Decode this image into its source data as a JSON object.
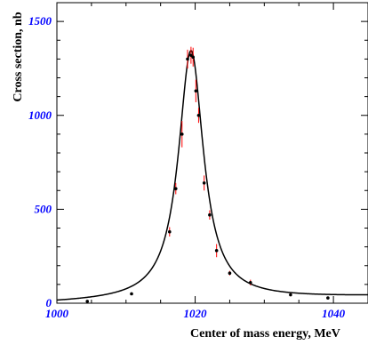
{
  "chart_data": {
    "type": "scatter",
    "xlabel": "Center of mass energy, MeV",
    "ylabel": "Cross section, nb",
    "xlim": [
      1000,
      1045
    ],
    "ylim": [
      0,
      1600
    ],
    "x_ticks": [
      1000,
      1020,
      1040
    ],
    "y_ticks": [
      0,
      500,
      1000,
      1500
    ],
    "x_tick_labels": [
      "1000",
      "1020",
      "1040"
    ],
    "y_tick_labels": [
      "0",
      "500",
      "1000",
      "1500"
    ],
    "tick_label_color": "#0000ff",
    "grid": false,
    "legend": "none",
    "series": [
      {
        "kind": "points",
        "color": "#000000",
        "error_color": "#ff0000",
        "points": [
          {
            "x": 1004.4,
            "y": 10,
            "err": 4
          },
          {
            "x": 1010.8,
            "y": 50,
            "err": 6
          },
          {
            "x": 1016.3,
            "y": 380,
            "err": 25
          },
          {
            "x": 1017.2,
            "y": 610,
            "err": 30
          },
          {
            "x": 1018.1,
            "y": 900,
            "err": 70
          },
          {
            "x": 1018.9,
            "y": 1300,
            "err": 50
          },
          {
            "x": 1019.4,
            "y": 1320,
            "err": 45
          },
          {
            "x": 1019.7,
            "y": 1310,
            "err": 50
          },
          {
            "x": 1020.1,
            "y": 1130,
            "err": 60
          },
          {
            "x": 1020.5,
            "y": 1000,
            "err": 40
          },
          {
            "x": 1021.3,
            "y": 640,
            "err": 40
          },
          {
            "x": 1022.1,
            "y": 470,
            "err": 25
          },
          {
            "x": 1023.1,
            "y": 280,
            "err": 35
          },
          {
            "x": 1025.0,
            "y": 160,
            "err": 12
          },
          {
            "x": 1028.0,
            "y": 110,
            "err": 15
          },
          {
            "x": 1033.8,
            "y": 45,
            "err": 8
          },
          {
            "x": 1039.2,
            "y": 28,
            "err": 6
          }
        ]
      },
      {
        "kind": "fit-curve",
        "color": "#000000",
        "model": {
          "peak_x": 1019.4,
          "peak_y": 1330,
          "half_width": 2.2,
          "background_left": 0,
          "background_right": 35
        }
      }
    ]
  }
}
